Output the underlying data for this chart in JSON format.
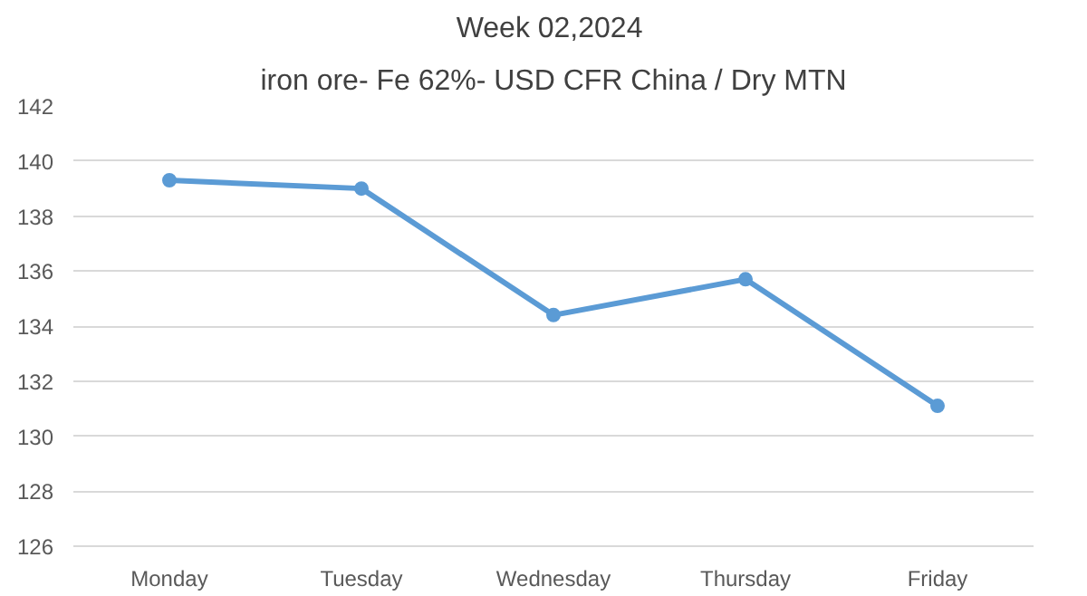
{
  "chart_data": {
    "type": "line",
    "title": "Week  02,2024",
    "subtitle": "iron ore- Fe 62%- USD CFR China / Dry MTN",
    "categories": [
      "Monday",
      "Tuesday",
      "Wednesday",
      "Thursday",
      "Friday"
    ],
    "series": [
      {
        "color": "#5b9bd5",
        "values": [
          139.3,
          139.0,
          134.4,
          135.7,
          131.1
        ]
      }
    ],
    "ylim": [
      126,
      142
    ],
    "yticks": [
      126,
      128,
      130,
      132,
      134,
      136,
      138,
      140,
      142
    ],
    "grid": "y",
    "marker": "circle",
    "line_style": "solid"
  }
}
